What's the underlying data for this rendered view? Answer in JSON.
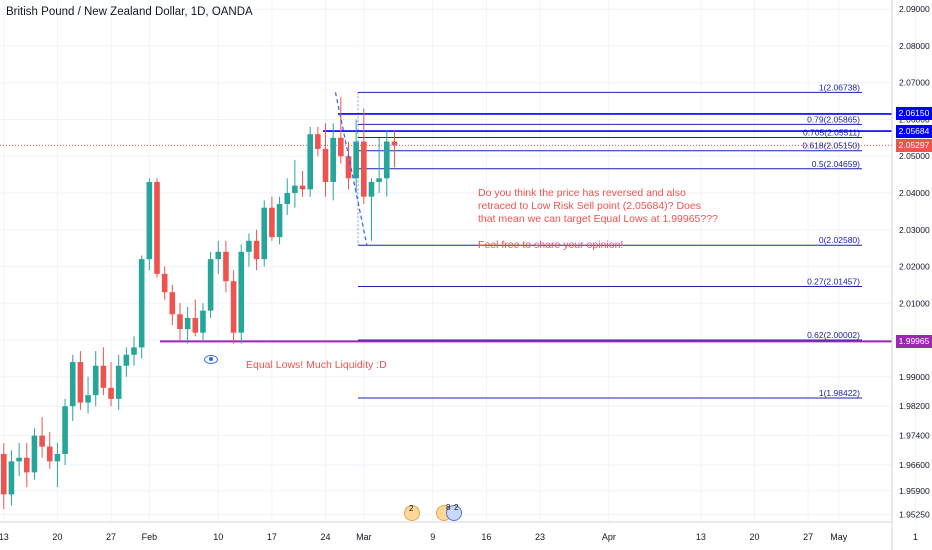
{
  "title": "British Pound / New Zealand Dollar, 1D, OANDA",
  "colors": {
    "up": "#26a69a",
    "down": "#ef5350",
    "fib": "#1a23b0",
    "level": "#0000ff",
    "equal_lows": "#9c27b0",
    "annotation": "#ef5350",
    "current": "#ef5350"
  },
  "chart_data": {
    "type": "candlestick",
    "y_axis": {
      "range": [
        1.9505,
        2.0925
      ],
      "ticks": [
        "2.09000",
        "2.08000",
        "2.07000",
        "2.06000",
        "2.05000",
        "2.04000",
        "2.03000",
        "2.02000",
        "2.01000",
        "2.00000",
        "1.99000",
        "1.98200",
        "1.97400",
        "1.96600",
        "1.95900",
        "1.95250"
      ],
      "tick_values": [
        2.09,
        2.08,
        2.07,
        2.06,
        2.05,
        2.04,
        2.03,
        2.02,
        2.01,
        2.0,
        1.99,
        1.982,
        1.974,
        1.966,
        1.959,
        1.9525
      ]
    },
    "x_axis": {
      "ticks": [
        "13",
        "20",
        "27",
        "Feb",
        "10",
        "17",
        "24",
        "Mar",
        "9",
        "16",
        "23",
        "Apr",
        "13",
        "20",
        "27",
        "May",
        "1"
      ],
      "tick_days": [
        0,
        7,
        14,
        19,
        28,
        35,
        42,
        47,
        56,
        63,
        70,
        79,
        91,
        98,
        105,
        109,
        119
      ]
    },
    "candles": [
      {
        "d": 0,
        "o": 1.969,
        "h": 1.972,
        "l": 1.954,
        "c": 1.958
      },
      {
        "d": 1,
        "o": 1.958,
        "h": 1.97,
        "l": 1.955,
        "c": 1.967
      },
      {
        "d": 2,
        "o": 1.967,
        "h": 1.972,
        "l": 1.963,
        "c": 1.968
      },
      {
        "d": 3,
        "o": 1.968,
        "h": 1.972,
        "l": 1.96,
        "c": 1.964
      },
      {
        "d": 4,
        "o": 1.964,
        "h": 1.976,
        "l": 1.962,
        "c": 1.974
      },
      {
        "d": 5,
        "o": 1.974,
        "h": 1.979,
        "l": 1.968,
        "c": 1.971
      },
      {
        "d": 6,
        "o": 1.971,
        "h": 1.975,
        "l": 1.965,
        "c": 1.967
      },
      {
        "d": 7,
        "o": 1.967,
        "h": 1.972,
        "l": 1.96,
        "c": 1.969
      },
      {
        "d": 8,
        "o": 1.969,
        "h": 1.984,
        "l": 1.966,
        "c": 1.982
      },
      {
        "d": 9,
        "o": 1.982,
        "h": 1.996,
        "l": 1.978,
        "c": 1.994
      },
      {
        "d": 10,
        "o": 1.994,
        "h": 1.997,
        "l": 1.981,
        "c": 1.983
      },
      {
        "d": 11,
        "o": 1.983,
        "h": 1.99,
        "l": 1.98,
        "c": 1.985
      },
      {
        "d": 12,
        "o": 1.985,
        "h": 1.997,
        "l": 1.982,
        "c": 1.993
      },
      {
        "d": 13,
        "o": 1.993,
        "h": 1.998,
        "l": 1.985,
        "c": 1.987
      },
      {
        "d": 14,
        "o": 1.987,
        "h": 1.994,
        "l": 1.982,
        "c": 1.984
      },
      {
        "d": 15,
        "o": 1.984,
        "h": 1.996,
        "l": 1.981,
        "c": 1.993
      },
      {
        "d": 16,
        "o": 1.993,
        "h": 1.998,
        "l": 1.99,
        "c": 1.996
      },
      {
        "d": 17,
        "o": 1.996,
        "h": 2.001,
        "l": 1.993,
        "c": 1.998
      },
      {
        "d": 18,
        "o": 1.998,
        "h": 2.023,
        "l": 1.995,
        "c": 2.022
      },
      {
        "d": 19,
        "o": 2.022,
        "h": 2.044,
        "l": 2.019,
        "c": 2.043
      },
      {
        "d": 20,
        "o": 2.043,
        "h": 2.044,
        "l": 2.017,
        "c": 2.018
      },
      {
        "d": 21,
        "o": 2.018,
        "h": 2.02,
        "l": 2.011,
        "c": 2.013
      },
      {
        "d": 22,
        "o": 2.013,
        "h": 2.015,
        "l": 2.004,
        "c": 2.007
      },
      {
        "d": 23,
        "o": 2.007,
        "h": 2.01,
        "l": 2.0,
        "c": 2.003
      },
      {
        "d": 24,
        "o": 2.003,
        "h": 2.009,
        "l": 1.999,
        "c": 2.006
      },
      {
        "d": 25,
        "o": 2.006,
        "h": 2.011,
        "l": 2.001,
        "c": 2.002
      },
      {
        "d": 26,
        "o": 2.002,
        "h": 2.01,
        "l": 2.0,
        "c": 2.008
      },
      {
        "d": 27,
        "o": 2.008,
        "h": 2.024,
        "l": 2.006,
        "c": 2.022
      },
      {
        "d": 28,
        "o": 2.022,
        "h": 2.027,
        "l": 2.018,
        "c": 2.024
      },
      {
        "d": 29,
        "o": 2.024,
        "h": 2.027,
        "l": 2.013,
        "c": 2.016
      },
      {
        "d": 30,
        "o": 2.016,
        "h": 2.019,
        "l": 1.999,
        "c": 2.002
      },
      {
        "d": 31,
        "o": 2.002,
        "h": 2.026,
        "l": 1.999,
        "c": 2.024
      },
      {
        "d": 32,
        "o": 2.024,
        "h": 2.029,
        "l": 2.02,
        "c": 2.027
      },
      {
        "d": 33,
        "o": 2.027,
        "h": 2.03,
        "l": 2.019,
        "c": 2.022
      },
      {
        "d": 34,
        "o": 2.022,
        "h": 2.038,
        "l": 2.02,
        "c": 2.036
      },
      {
        "d": 35,
        "o": 2.036,
        "h": 2.039,
        "l": 2.027,
        "c": 2.028
      },
      {
        "d": 36,
        "o": 2.028,
        "h": 2.039,
        "l": 2.026,
        "c": 2.037
      },
      {
        "d": 37,
        "o": 2.037,
        "h": 2.044,
        "l": 2.034,
        "c": 2.04
      },
      {
        "d": 38,
        "o": 2.04,
        "h": 2.049,
        "l": 2.036,
        "c": 2.042
      },
      {
        "d": 39,
        "o": 2.042,
        "h": 2.046,
        "l": 2.039,
        "c": 2.041
      },
      {
        "d": 40,
        "o": 2.041,
        "h": 2.058,
        "l": 2.039,
        "c": 2.056
      },
      {
        "d": 41,
        "o": 2.056,
        "h": 2.058,
        "l": 2.05,
        "c": 2.052
      },
      {
        "d": 42,
        "o": 2.052,
        "h": 2.059,
        "l": 2.039,
        "c": 2.043
      },
      {
        "d": 43,
        "o": 2.043,
        "h": 2.059,
        "l": 2.038,
        "c": 2.055
      },
      {
        "d": 44,
        "o": 2.055,
        "h": 2.066,
        "l": 2.048,
        "c": 2.05
      },
      {
        "d": 45,
        "o": 2.05,
        "h": 2.054,
        "l": 2.041,
        "c": 2.044
      },
      {
        "d": 46,
        "o": 2.044,
        "h": 2.06,
        "l": 2.04,
        "c": 2.054
      },
      {
        "d": 47,
        "o": 2.054,
        "h": 2.063,
        "l": 2.037,
        "c": 2.039
      },
      {
        "d": 48,
        "o": 2.039,
        "h": 2.044,
        "l": 2.027,
        "c": 2.043
      },
      {
        "d": 49,
        "o": 2.043,
        "h": 2.055,
        "l": 2.04,
        "c": 2.044
      },
      {
        "d": 50,
        "o": 2.044,
        "h": 2.057,
        "l": 2.039,
        "c": 2.054
      },
      {
        "d": 51,
        "o": 2.054,
        "h": 2.057,
        "l": 2.047,
        "c": 2.05297
      }
    ],
    "swing_line": [
      {
        "d": 43.3,
        "v": 2.06738
      },
      {
        "d": 47.4,
        "v": 2.0258
      }
    ],
    "fib_levels": [
      {
        "label": "1(2.06738)",
        "value": 2.06738
      },
      {
        "label": "0.79(2.05865)",
        "value": 2.05865
      },
      {
        "label": "0.705(2.05511)",
        "value": 2.05511
      },
      {
        "label": "0.618(2.05150)",
        "value": 2.0515
      },
      {
        "label": "0.5(2.04659)",
        "value": 2.04659
      },
      {
        "label": "0(2.02580)",
        "value": 2.0258
      },
      {
        "label": "0.27(2.01457)",
        "value": 2.01457
      },
      {
        "label": "0.62(2.00002)",
        "value": 2.00002
      },
      {
        "label": "1(1.98422)",
        "value": 1.98422
      }
    ],
    "horizontal_levels": [
      {
        "value": 2.0615,
        "color": "#0000ff"
      },
      {
        "value": 2.05684,
        "color": "#0000ff"
      },
      {
        "value": 1.99965,
        "color": "#9c27b0"
      }
    ],
    "price_labels": [
      {
        "text": "2.06150",
        "value": 2.0615,
        "color": "#0000ff"
      },
      {
        "text": "2.05684",
        "value": 2.05684,
        "color": "#0000ff"
      },
      {
        "text": "2.05297",
        "value": 2.05297,
        "color": "#ef5350"
      },
      {
        "text": "1.99965",
        "value": 1.99965,
        "color": "#9c27b0"
      }
    ],
    "current_price": 2.05297
  },
  "annotations": {
    "main": [
      "Do you think the price has reversed and also",
      "retraced to Low Risk Sell point (2.05684)? Does",
      "that mean we can target Equal Lows at 1.99965???",
      "",
      "Feel free to share your opinion!"
    ],
    "equal_lows": "Equal Lows! Much Liquidity :D"
  },
  "events": {
    "first_count": "2",
    "second_count_a": "8",
    "second_count_b": "2"
  }
}
